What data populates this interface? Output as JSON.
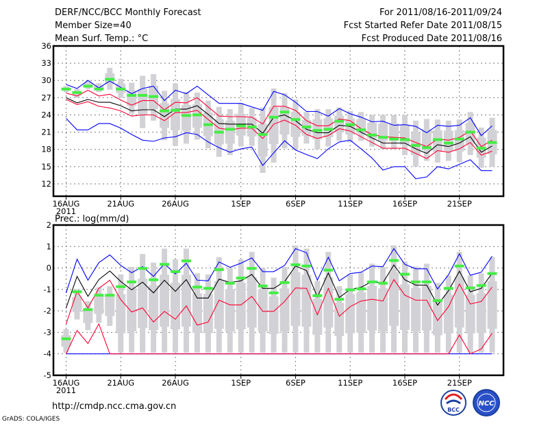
{
  "header": {
    "title": "DERF/NCC/BCC Monthly Forecast",
    "member_size": "Member Size=40",
    "variable": "Mean Surf. Temp.: °C",
    "period": "For 2011/08/16-2011/09/24",
    "started": "Fcst Started Refer Date 2011/08/15",
    "produced": "Fcst Produced Date 2011/08/16"
  },
  "footer": {
    "url": "http://cmdp.ncc.cma.gov.cn",
    "credit": "GrADS: COLA/IGES",
    "logos": [
      "BCC",
      "NCC"
    ]
  },
  "colors": {
    "outer": "#0000ff",
    "inner": "#ff0033",
    "mean": "#000000",
    "obs": "#44ee44",
    "spread": "#d2d2d6"
  },
  "chart_data": [
    {
      "type": "line",
      "title": "Mean Surf. Temp.: °C",
      "ylim": [
        9.85,
        36
      ],
      "yticks": [
        12,
        15,
        18,
        21,
        24,
        27,
        30,
        33,
        36
      ],
      "xtick_days": [
        0,
        5,
        10,
        16,
        21,
        26,
        31,
        36
      ],
      "xtick_labels": [
        "16AUG",
        "21AUG",
        "26AUG",
        "1SEP",
        "6SEP",
        "11SEP",
        "16SEP",
        "21SEP"
      ],
      "xtick_year": "2011",
      "grid": true,
      "days": 40,
      "series": [
        {
          "name": "outer-upper",
          "color": "#0000ff",
          "values": [
            29.3,
            28.6,
            30.0,
            28.7,
            29.9,
            28.8,
            27.7,
            28.6,
            29.0,
            26.5,
            28.3,
            27.7,
            29.0,
            27.5,
            26.0,
            26.0,
            26.0,
            25.4,
            24.8,
            28.1,
            27.5,
            26.2,
            24.6,
            24.6,
            23.8,
            25.1,
            24.2,
            23.6,
            22.8,
            22.9,
            22.2,
            22.3,
            22.0,
            20.9,
            22.2,
            22.0,
            22.2,
            23.5,
            20.4,
            22.1
          ]
        },
        {
          "name": "inner-upper",
          "color": "#ff0033",
          "values": [
            27.8,
            27.3,
            28.3,
            27.3,
            27.6,
            26.6,
            25.7,
            26.5,
            26.5,
            24.9,
            26.2,
            26.1,
            27.0,
            25.4,
            23.8,
            23.7,
            23.7,
            23.6,
            22.4,
            25.5,
            25.5,
            24.8,
            23.0,
            22.1,
            22.1,
            23.3,
            23.0,
            21.6,
            20.6,
            20.2,
            20.1,
            20.0,
            19.2,
            18.5,
            19.8,
            19.6,
            20.1,
            21.2,
            18.5,
            19.6
          ]
        },
        {
          "name": "mean",
          "color": "#000000",
          "values": [
            27.0,
            26.1,
            26.7,
            26.2,
            26.2,
            25.6,
            24.7,
            24.9,
            24.9,
            23.7,
            25.0,
            25.0,
            25.6,
            24.1,
            22.5,
            22.4,
            22.4,
            22.4,
            20.8,
            23.6,
            24.0,
            23.0,
            21.5,
            20.9,
            20.9,
            22.2,
            22.0,
            21.0,
            20.0,
            19.1,
            19.1,
            19.1,
            18.1,
            17.3,
            18.8,
            18.5,
            19.1,
            20.2,
            17.5,
            18.6
          ]
        },
        {
          "name": "inner-lower",
          "color": "#ff0033",
          "values": [
            26.7,
            25.8,
            26.3,
            25.5,
            25.2,
            24.7,
            23.8,
            24.0,
            24.0,
            23.0,
            24.4,
            24.4,
            24.8,
            23.2,
            21.7,
            21.4,
            21.7,
            21.7,
            19.9,
            22.4,
            23.1,
            22.2,
            20.6,
            19.9,
            20.4,
            21.6,
            21.2,
            20.2,
            19.2,
            18.2,
            18.2,
            18.2,
            17.3,
            16.4,
            17.8,
            17.5,
            18.1,
            19.2,
            17.0,
            17.7
          ]
        },
        {
          "name": "outer-lower",
          "color": "#0000ff",
          "values": [
            23.4,
            21.4,
            21.4,
            22.5,
            22.5,
            21.7,
            20.6,
            19.6,
            19.4,
            20.0,
            20.2,
            20.9,
            20.6,
            19.3,
            18.3,
            17.5,
            18.1,
            18.4,
            15.2,
            17.4,
            19.5,
            17.9,
            17.1,
            16.4,
            18.1,
            19.3,
            19.6,
            18.1,
            16.5,
            14.4,
            15.0,
            15.0,
            12.9,
            13.2,
            15.0,
            14.6,
            15.4,
            16.2,
            14.3,
            14.3
          ]
        }
      ],
      "observed": [
        28.5,
        27.9,
        29.0,
        28.5,
        30.2,
        28.5,
        27.4,
        27.4,
        27.2,
        24.7,
        24.8,
        23.9,
        24.0,
        22.3,
        21.0,
        21.5,
        22.1,
        21.9,
        20.6,
        23.6,
        24.5,
        23.2,
        21.9,
        21.3,
        21.5,
        22.9,
        22.3,
        21.4,
        20.5,
        20.1,
        19.8,
        19.7,
        18.7,
        18.3,
        19.7,
        19.1,
        19.8,
        21.0,
        18.2,
        19.2
      ],
      "spread_low": [
        28.0,
        27.0,
        28.5,
        28.0,
        28.4,
        27.0,
        24.2,
        21.7,
        23.0,
        19.6,
        18.6,
        19.0,
        19.7,
        18.2,
        16.7,
        17.0,
        18.5,
        18.6,
        13.9,
        15.7,
        18.2,
        18.0,
        19.0,
        18.0,
        18.5,
        19.5,
        19.2,
        19.5,
        18.5,
        18.0,
        18.0,
        17.0,
        15.0,
        16.0,
        15.7,
        16.0,
        15.8,
        17.0,
        14.8,
        15.0
      ],
      "spread_high": [
        29.0,
        28.5,
        29.9,
        29.5,
        32.2,
        30.3,
        29.6,
        30.8,
        31.1,
        28.2,
        29.5,
        28.0,
        27.9,
        26.5,
        25.4,
        25.0,
        26.1,
        25.2,
        25.3,
        28.6,
        27.8,
        26.7,
        24.5,
        25.0,
        25.0,
        25.3,
        24.7,
        24.5,
        24.0,
        24.0,
        24.0,
        24.0,
        23.0,
        23.3,
        23.2,
        23.0,
        23.2,
        24.5,
        21.8,
        23.5
      ]
    },
    {
      "type": "line",
      "title": "Prec.: log(mm/d)",
      "ylim": [
        -5,
        2
      ],
      "yticks": [
        -5,
        -4,
        -3,
        -2,
        -1,
        0,
        1,
        2
      ],
      "xtick_days": [
        0,
        5,
        10,
        16,
        21,
        26,
        31,
        36
      ],
      "xtick_labels": [
        "16AUG",
        "21AUG",
        "26AUG",
        "1SEP",
        "6SEP",
        "11SEP",
        "16SEP",
        "21SEP"
      ],
      "xtick_year": "2011",
      "grid": true,
      "days": 40,
      "series": [
        {
          "name": "outer-upper",
          "color": "#0000ff",
          "values": [
            -1.16,
            0.41,
            -0.57,
            0.25,
            0.61,
            0.12,
            -0.22,
            0.06,
            -0.39,
            0.2,
            -0.28,
            0.22,
            -0.57,
            -0.6,
            0.28,
            0.03,
            0.22,
            0.47,
            -0.17,
            -0.17,
            0.12,
            0.9,
            0.71,
            -0.57,
            0.5,
            -0.6,
            -0.26,
            -0.2,
            0.09,
            0.06,
            0.9,
            0.17,
            -0.04,
            -0.04,
            -0.98,
            -0.31,
            0.66,
            -0.34,
            -0.2,
            0.55
          ]
        },
        {
          "name": "outer-lower",
          "color": "#0000ff",
          "values": [
            -4,
            -4,
            -4,
            -4,
            -4,
            -4,
            -4,
            -4,
            -4,
            -4,
            -4,
            -4,
            -4,
            -4,
            -4,
            -4,
            -4,
            -4,
            -4,
            -4,
            -4,
            -4,
            -4,
            -4,
            -4,
            -4,
            -4,
            -4,
            -4,
            -4,
            -4,
            -4,
            -4,
            -4,
            -4,
            -4,
            -4,
            -4,
            -4,
            -4
          ]
        },
        {
          "name": "inner-upper",
          "color": "#ff0033",
          "values": [
            -2.61,
            -1.09,
            -1.86,
            -0.95,
            -0.57,
            -1.48,
            -2.05,
            -1.86,
            -2.52,
            -2.02,
            -2.39,
            -1.77,
            -2.66,
            -2.52,
            -1.5,
            -1.72,
            -1.72,
            -1.32,
            -2.02,
            -2.02,
            -1.56,
            -0.93,
            -0.95,
            -2.18,
            -0.95,
            -2.25,
            -1.8,
            -1.54,
            -1.46,
            -1.54,
            -0.54,
            -1.27,
            -1.5,
            -1.5,
            -2.45,
            -1.8,
            -0.75,
            -1.68,
            -1.56,
            -0.89
          ]
        },
        {
          "name": "inner-lower",
          "color": "#ff0033",
          "values": [
            -4,
            -2.91,
            -3.52,
            -2.61,
            -4,
            -4,
            -4,
            -4,
            -4,
            -4,
            -4,
            -4,
            -4,
            -4,
            -4,
            -4,
            -4,
            -4,
            -4,
            -4,
            -4,
            -4,
            -4,
            -4,
            -4,
            -4,
            -4,
            -4,
            -4,
            -4,
            -4,
            -4,
            -4,
            -4,
            -4,
            -4,
            -3.12,
            -4,
            -3.77,
            -3.04
          ]
        },
        {
          "name": "mean",
          "color": "#000000",
          "values": [
            -1.86,
            -0.39,
            -1.32,
            -0.54,
            -0.14,
            -0.63,
            -1.02,
            -0.66,
            -1.16,
            -0.57,
            -1.09,
            -0.54,
            -1.4,
            -1.4,
            -0.52,
            -0.68,
            -0.6,
            -0.3,
            -0.95,
            -0.95,
            -0.63,
            0.09,
            -0.12,
            -1.35,
            -0.23,
            -1.38,
            -1.0,
            -0.9,
            -0.63,
            -0.69,
            0.14,
            -0.55,
            -0.8,
            -0.8,
            -1.73,
            -1.06,
            -0.15,
            -1.11,
            -0.95,
            -0.24
          ]
        }
      ],
      "observed": [
        -3.3,
        -1.11,
        -1.94,
        -1.27,
        -1.27,
        -0.87,
        -0.65,
        -0.02,
        -0.55,
        0.17,
        -0.17,
        0.33,
        -0.89,
        -0.95,
        -0.08,
        -0.71,
        -0.47,
        -0.02,
        -0.84,
        -1.16,
        -0.68,
        0.15,
        0.09,
        -1.29,
        -0.1,
        -1.46,
        -1.02,
        -0.97,
        -0.65,
        -0.71,
        0.35,
        -0.29,
        -0.65,
        -0.65,
        -1.52,
        -0.95,
        0.09,
        -0.93,
        -0.82,
        -0.26
      ],
      "spread_low": [
        -3.95,
        -2.4,
        -2.9,
        -2.55,
        -2.7,
        -3.95,
        -3.95,
        -3.95,
        -3.95,
        -3.95,
        -3.95,
        -3.95,
        -3.95,
        -3.95,
        -3.95,
        -3.95,
        -3.95,
        -3.95,
        -3.95,
        -3.95,
        -3.95,
        -3.95,
        -3.95,
        -3.95,
        -3.95,
        -3.95,
        -3.95,
        -3.95,
        -3.95,
        -3.95,
        -3.95,
        -3.95,
        -3.95,
        -3.95,
        -3.95,
        -3.95,
        -3.95,
        -3.95,
        -3.95,
        -3.95
      ],
      "spread_high": [
        -2.85,
        -1.0,
        -1.55,
        -0.9,
        -0.85,
        -0.3,
        0.05,
        0.65,
        0.25,
        0.9,
        0.4,
        0.9,
        -0.25,
        -0.3,
        0.5,
        0.0,
        0.4,
        0.75,
        0.0,
        -0.45,
        0.05,
        1.05,
        0.9,
        -0.6,
        0.75,
        -0.85,
        -0.3,
        -0.2,
        0.2,
        0.05,
        1.05,
        0.3,
        0.07,
        0.2,
        -0.7,
        -0.35,
        0.75,
        -0.35,
        -0.25,
        0.5
      ]
    }
  ]
}
